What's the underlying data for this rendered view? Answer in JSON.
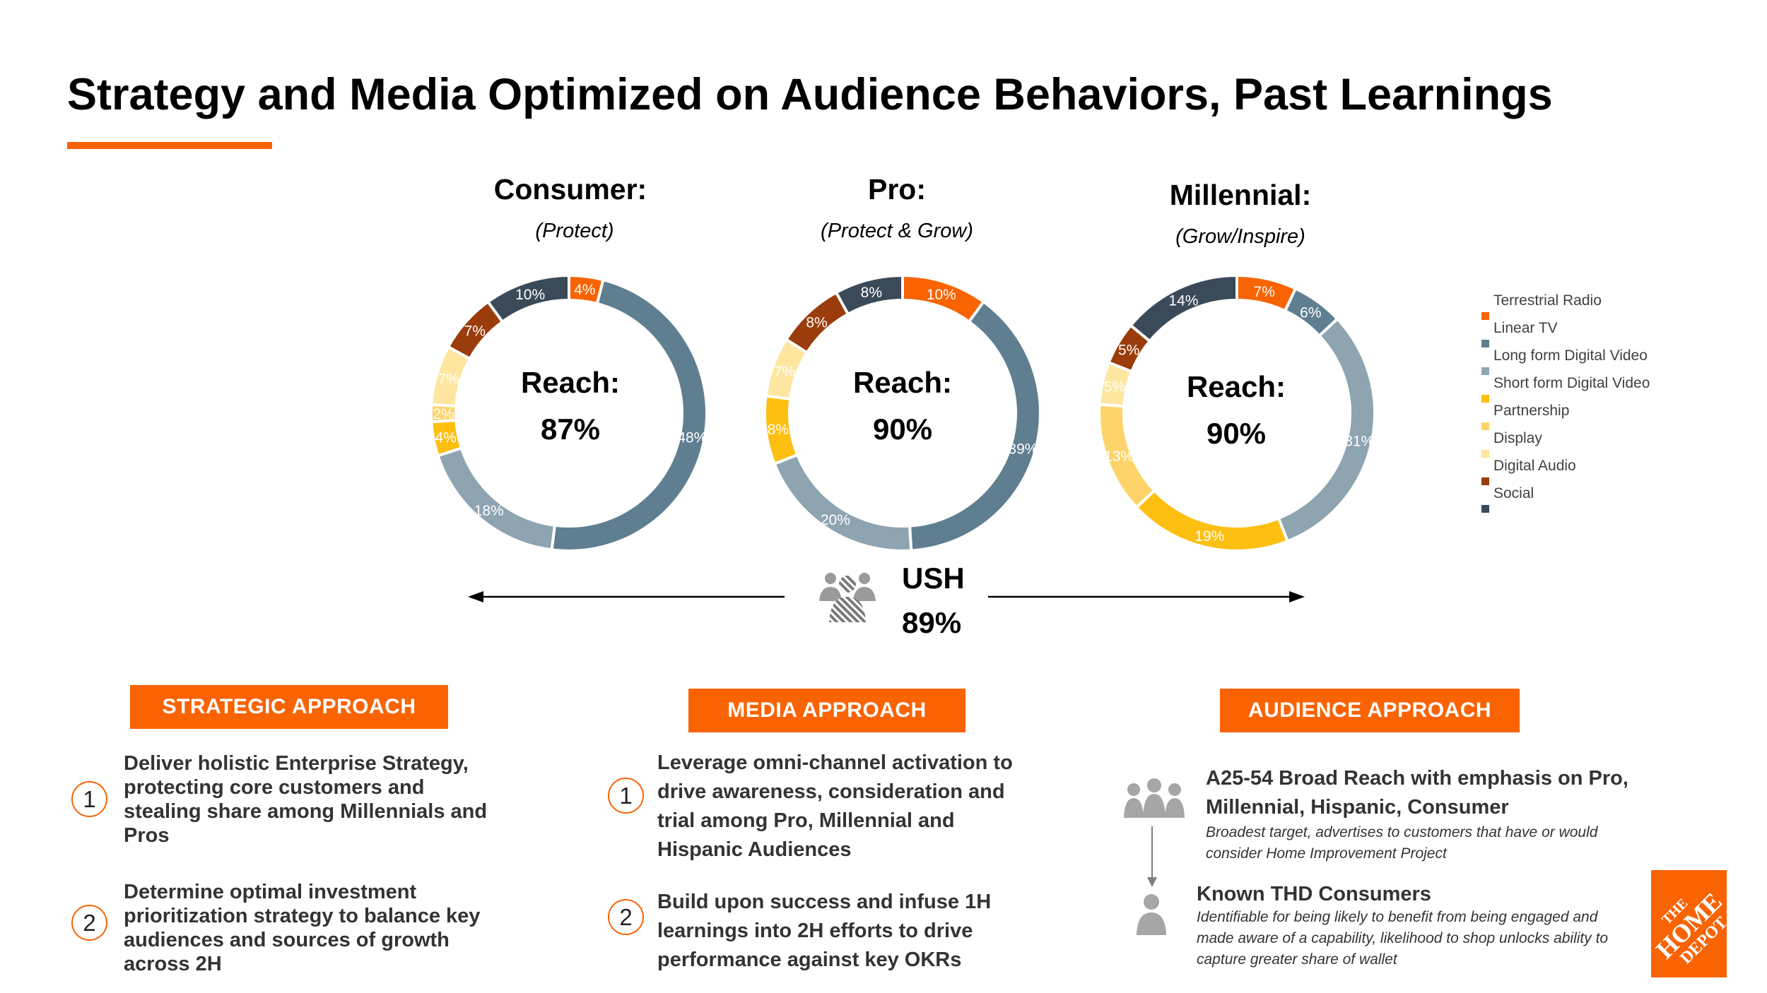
{
  "title": "Strategy and Media Optimized on Audience Behaviors, Past Learnings",
  "colors": {
    "accent": "#f96302",
    "Terrestrial Radio": "#f96302",
    "Linear TV": "#5f7f91",
    "Long form Digital Video": "#8fa4b1",
    "Short form Digital Video": "#fdbf10",
    "Partnership": "#fed46a",
    "Display": "#fee6a0",
    "Digital Audio": "#9a3c0b",
    "Social": "#3b4a59"
  },
  "segments": [
    {
      "name": "Consumer:",
      "subtitle": "(Protect)",
      "reach_label": "Reach:",
      "reach_value": "87%"
    },
    {
      "name": "Pro:",
      "subtitle": "(Protect & Grow)",
      "reach_label": "Reach:",
      "reach_value": "90%"
    },
    {
      "name": "Millennial:",
      "subtitle": "(Grow/Inspire)",
      "reach_label": "Reach:",
      "reach_value": "90%"
    }
  ],
  "chart_data": [
    {
      "type": "pie",
      "title": "Consumer: (Protect)",
      "center_text": "Reach: 87%",
      "slices": [
        {
          "label": "Terrestrial Radio",
          "value": 4,
          "display": "4%"
        },
        {
          "label": "Linear TV",
          "value": 48,
          "display": "48%"
        },
        {
          "label": "Long form Digital Video",
          "value": 18,
          "display": "18%"
        },
        {
          "label": "Short form Digital Video",
          "value": 4,
          "display": "4%"
        },
        {
          "label": "Partnership",
          "value": 2,
          "display": "2%"
        },
        {
          "label": "Display",
          "value": 7,
          "display": "7%"
        },
        {
          "label": "Digital Audio",
          "value": 7,
          "display": "7%"
        },
        {
          "label": "Social",
          "value": 10,
          "display": "10%"
        }
      ]
    },
    {
      "type": "pie",
      "title": "Pro: (Protect & Grow)",
      "center_text": "Reach: 90%",
      "slices": [
        {
          "label": "Terrestrial Radio",
          "value": 10,
          "display": "10%"
        },
        {
          "label": "Linear TV",
          "value": 39,
          "display": "39%"
        },
        {
          "label": "Long form Digital Video",
          "value": 20,
          "display": "20%"
        },
        {
          "label": "Short form Digital Video",
          "value": 8,
          "display": "8%"
        },
        {
          "label": "Display",
          "value": 7,
          "display": "7%"
        },
        {
          "label": "Digital Audio",
          "value": 8,
          "display": "8%"
        },
        {
          "label": "Social",
          "value": 8,
          "display": "8%"
        }
      ]
    },
    {
      "type": "pie",
      "title": "Millennial: (Grow/Inspire)",
      "center_text": "Reach: 90%",
      "slices": [
        {
          "label": "Terrestrial Radio",
          "value": 7,
          "display": "7%"
        },
        {
          "label": "Linear TV",
          "value": 6,
          "display": "6%"
        },
        {
          "label": "Long form Digital Video",
          "value": 31,
          "display": "31%"
        },
        {
          "label": "Short form Digital Video",
          "value": 19,
          "display": "19%"
        },
        {
          "label": "Partnership",
          "value": 13,
          "display": "13%"
        },
        {
          "label": "Display",
          "value": 5,
          "display": "5%"
        },
        {
          "label": "Digital Audio",
          "value": 5,
          "display": "5%"
        },
        {
          "label": "Social",
          "value": 14,
          "display": "14%"
        }
      ]
    }
  ],
  "legend": [
    "Terrestrial Radio",
    "Linear TV",
    "Long form Digital Video",
    "Short form Digital Video",
    "Partnership",
    "Display",
    "Digital Audio",
    "Social"
  ],
  "ush": {
    "label": "USH",
    "value": "89%",
    "icon": "people-group-icon"
  },
  "strategic": {
    "header": "STRATEGIC APPROACH",
    "items": [
      {
        "num": "1",
        "text": "Deliver holistic Enterprise Strategy, protecting core customers and stealing share among Millennials and Pros"
      },
      {
        "num": "2",
        "text": "Determine optimal investment prioritization strategy to balance key audiences and sources of growth across 2H"
      }
    ]
  },
  "media": {
    "header": "MEDIA APPROACH",
    "items": [
      {
        "num": "1",
        "text": "Leverage omni-channel activation to drive awareness, consideration and trial among Pro, Millennial and Hispanic Audiences"
      },
      {
        "num": "2",
        "text": "Build upon success and infuse 1H learnings into 2H efforts to drive performance against key OKRs"
      }
    ]
  },
  "audience": {
    "header": "AUDIENCE APPROACH",
    "broad_title": "A25-54 Broad Reach with emphasis on Pro, Millennial, Hispanic, Consumer",
    "broad_desc": "Broadest target, advertises to customers that have or would consider Home Improvement Project",
    "known_title": "Known THD Consumers",
    "known_desc": "Identifiable for being likely to benefit from being engaged and made aware of a capability, likelihood to shop unlocks ability to capture greater share of wallet"
  },
  "logo": {
    "line1": "THE",
    "line2": "HOME",
    "line3": "DEPOT"
  }
}
